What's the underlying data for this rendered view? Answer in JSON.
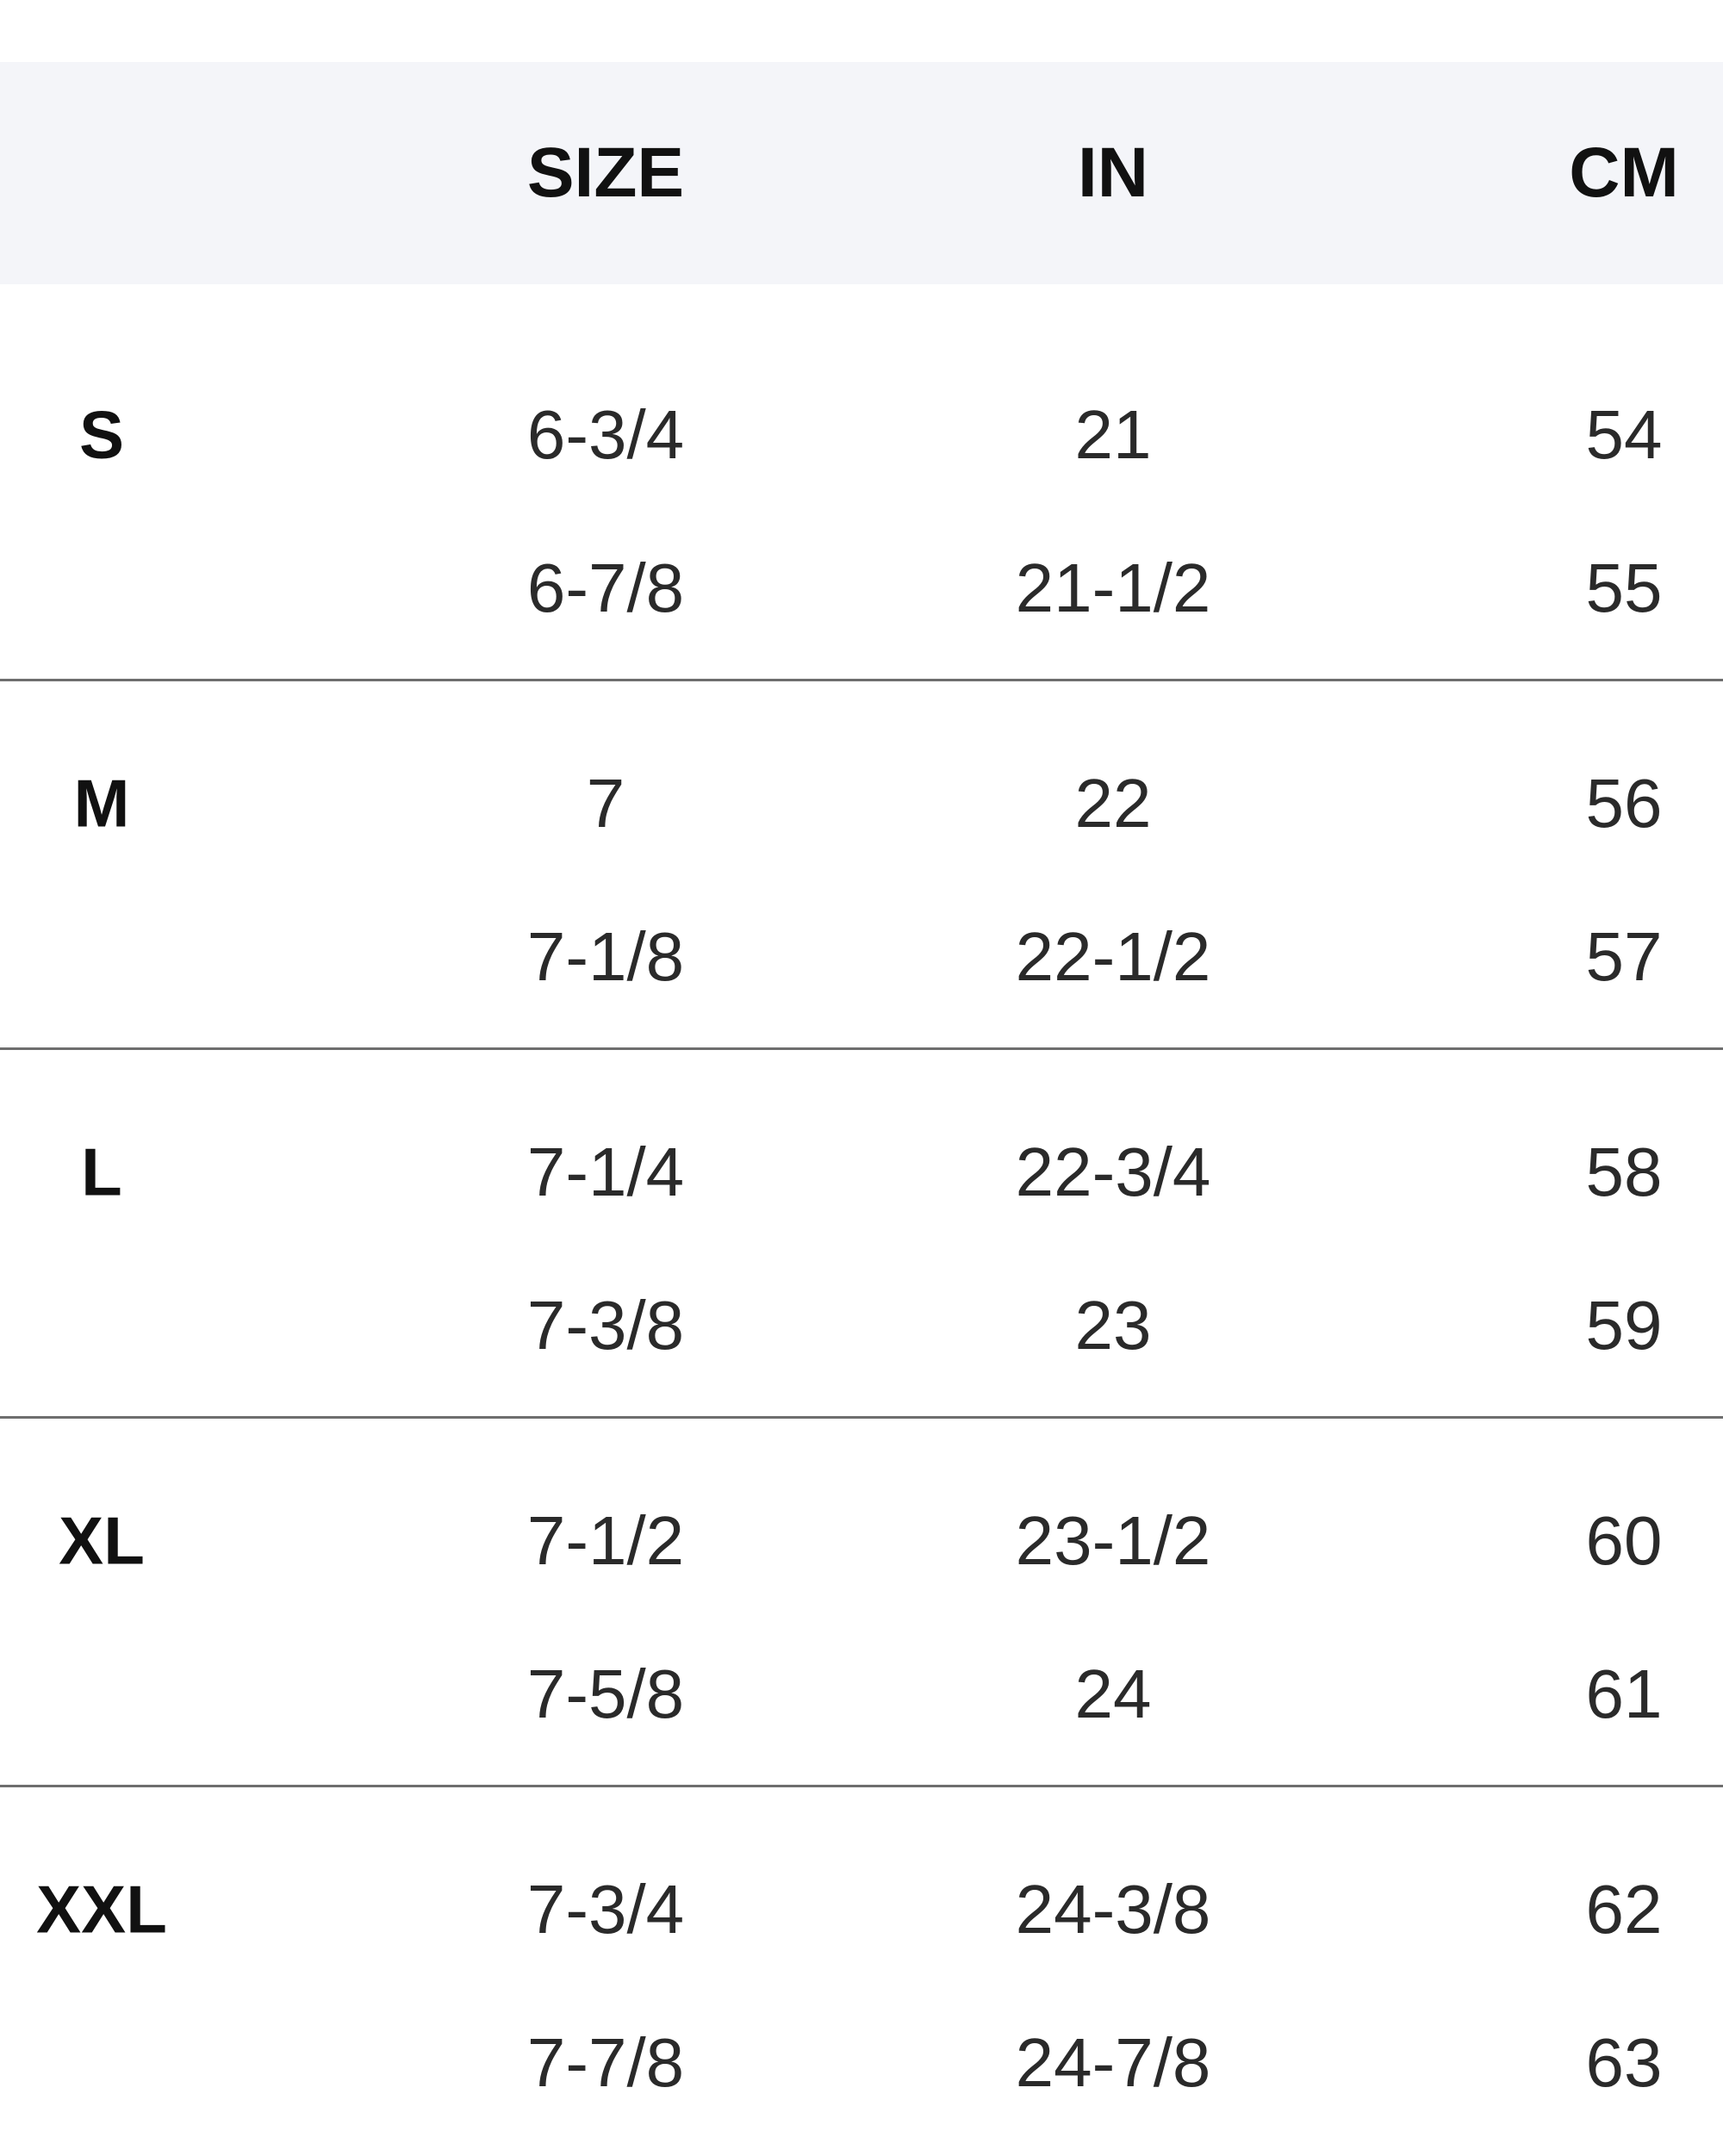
{
  "header": {
    "label": "",
    "size": "SIZE",
    "in": "IN",
    "cm": "CM"
  },
  "groups": [
    {
      "label": "S",
      "rows": [
        {
          "size": "6-3/4",
          "in": "21",
          "cm": "54"
        },
        {
          "size": "6-7/8",
          "in": "21-1/2",
          "cm": "55"
        }
      ]
    },
    {
      "label": "M",
      "rows": [
        {
          "size": "7",
          "in": "22",
          "cm": "56"
        },
        {
          "size": "7-1/8",
          "in": "22-1/2",
          "cm": "57"
        }
      ]
    },
    {
      "label": "L",
      "rows": [
        {
          "size": "7-1/4",
          "in": "22-3/4",
          "cm": "58"
        },
        {
          "size": "7-3/8",
          "in": "23",
          "cm": "59"
        }
      ]
    },
    {
      "label": "XL",
      "rows": [
        {
          "size": "7-1/2",
          "in": "23-1/2",
          "cm": "60"
        },
        {
          "size": "7-5/8",
          "in": "24",
          "cm": "61"
        }
      ]
    },
    {
      "label": "XXL",
      "rows": [
        {
          "size": "7-3/4",
          "in": "24-3/8",
          "cm": "62"
        },
        {
          "size": "7-7/8",
          "in": "24-7/8",
          "cm": "63"
        }
      ]
    }
  ]
}
